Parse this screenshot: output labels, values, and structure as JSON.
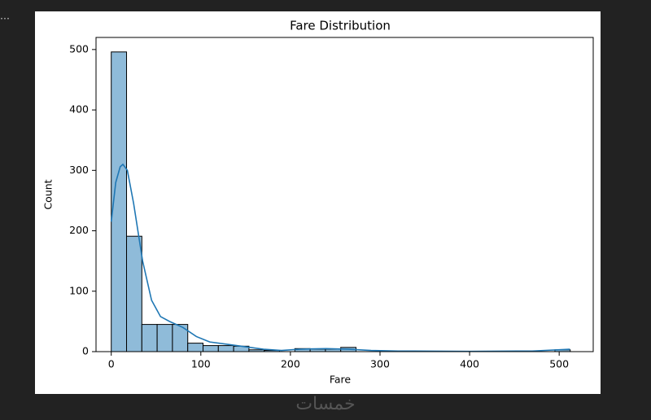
{
  "ui": {
    "menu": "...",
    "watermark": "خمسات"
  },
  "chart_data": {
    "type": "histogram",
    "title": "Fare Distribution",
    "x_label": "Fare",
    "y_label": "Count",
    "bins": [
      0,
      17.08,
      34.16,
      51.23,
      68.31,
      85.39,
      102.47,
      119.54,
      136.62,
      153.7,
      170.78,
      187.85,
      204.93,
      222.01,
      239.09,
      256.16,
      273.24,
      290.32,
      307.4,
      324.47,
      341.55,
      358.63,
      375.71,
      392.78,
      409.86,
      426.94,
      444.02,
      461.09,
      478.17,
      495.25,
      512.33
    ],
    "values": [
      496,
      191,
      45,
      45,
      45,
      14,
      10,
      10,
      9,
      3,
      2,
      0,
      5,
      4,
      4,
      7,
      0,
      0,
      0,
      0,
      0,
      0,
      0,
      0,
      0,
      0,
      0,
      0,
      0,
      3
    ],
    "color": "#8fbbd9",
    "edgecolor": "#000000",
    "kde": {
      "color": "#1f77b4",
      "x": [
        0,
        5,
        10,
        13,
        18,
        25,
        35,
        45,
        55,
        65,
        80,
        95,
        110,
        130,
        150,
        170,
        190,
        210,
        240,
        265,
        290,
        320,
        400,
        470,
        512
      ],
      "y": [
        215,
        280,
        306,
        310,
        300,
        245,
        150,
        85,
        58,
        50,
        40,
        25,
        16,
        12,
        8,
        4,
        2,
        4,
        5,
        4,
        2,
        1,
        0.5,
        1,
        4
      ]
    },
    "xlim": [
      -17,
      538
    ],
    "ylim": [
      0,
      520
    ],
    "xticks": [
      0,
      100,
      200,
      300,
      400,
      500
    ],
    "yticks": [
      0,
      100,
      200,
      300,
      400,
      500
    ]
  }
}
